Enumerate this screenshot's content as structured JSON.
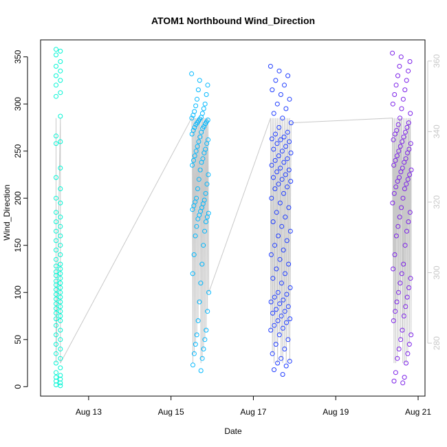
{
  "chart_data": {
    "type": "scatter",
    "title": "ATOM1 Northbound Wind_Direction",
    "xlabel": "Date",
    "ylabel": "Wind_Direction",
    "x_ticks": [
      "Aug 13",
      "Aug 15",
      "Aug 17",
      "Aug 19",
      "Aug 21"
    ],
    "y_ticks": [
      0,
      50,
      100,
      150,
      200,
      250,
      300,
      350
    ],
    "y_right_ticks": [
      280,
      300,
      320,
      340,
      360
    ],
    "xlim": [
      "2021-08-11T20:00",
      "2021-08-21T04:00"
    ],
    "ylim": [
      -10,
      368
    ],
    "y_right_lim": [
      265,
      366
    ],
    "grid": false,
    "colors": {
      "series_1": "#00f5d4",
      "series_2": "#00b8ff",
      "series_3": "#1e3cff",
      "series_4": "#7b1fe8",
      "line": "#c8c8c8"
    },
    "series": [
      {
        "x_range": [
          "2021-08-12T05:00",
          "2021-08-12T10:00"
        ],
        "values": [
          358,
          356,
          352,
          345,
          340,
          335,
          330,
          325,
          320,
          312,
          308,
          287,
          266,
          260,
          258,
          232,
          222,
          210,
          200,
          195,
          185,
          180,
          175,
          170,
          165,
          160,
          155,
          150,
          145,
          140,
          135,
          130,
          128,
          125,
          122,
          120,
          118,
          115,
          112,
          110,
          108,
          105,
          103,
          100,
          98,
          95,
          93,
          90,
          88,
          85,
          83,
          80,
          78,
          75,
          72,
          70,
          65,
          60,
          55,
          50,
          45,
          40,
          35,
          30,
          25,
          20,
          15,
          12,
          10,
          8,
          6,
          4,
          2,
          1
        ]
      },
      {
        "x_range": [
          "2021-08-15T12:00",
          "2021-08-15T22:00"
        ],
        "values": [
          332,
          325,
          320,
          315,
          310,
          305,
          300,
          298,
          295,
          292,
          290,
          288,
          286,
          285,
          284,
          283,
          282,
          281,
          280,
          279,
          278,
          276,
          275,
          274,
          272,
          270,
          268,
          265,
          262,
          260,
          258,
          255,
          252,
          250,
          248,
          245,
          242,
          240,
          238,
          235,
          230,
          225,
          220,
          215,
          210,
          205,
          200,
          198,
          196,
          194,
          192,
          190,
          188,
          186,
          184,
          182,
          180,
          178,
          175,
          170,
          165,
          160,
          150,
          140,
          130,
          120,
          110,
          100,
          90,
          80,
          70,
          60,
          55,
          50,
          45,
          40,
          35,
          30,
          23,
          17
        ]
      },
      {
        "x_range": [
          "2021-08-17T10:00",
          "2021-08-17T22:00"
        ],
        "values": [
          340,
          335,
          330,
          325,
          320,
          315,
          310,
          305,
          300,
          295,
          290,
          285,
          280,
          275,
          270,
          268,
          265,
          263,
          262,
          260,
          258,
          255,
          252,
          250,
          248,
          245,
          242,
          240,
          238,
          235,
          232,
          230,
          228,
          225,
          222,
          220,
          218,
          215,
          212,
          210,
          205,
          200,
          195,
          190,
          185,
          180,
          175,
          170,
          165,
          160,
          155,
          150,
          145,
          140,
          135,
          130,
          125,
          120,
          115,
          110,
          105,
          100,
          98,
          95,
          92,
          90,
          88,
          85,
          82,
          80,
          78,
          75,
          72,
          70,
          68,
          65,
          62,
          60,
          55,
          50,
          45,
          40,
          35,
          30,
          27,
          25,
          22,
          18,
          13
        ]
      },
      {
        "x_range": [
          "2021-08-20T09:00",
          "2021-08-20T20:00"
        ],
        "values": [
          354,
          350,
          345,
          340,
          335,
          330,
          325,
          320,
          315,
          310,
          305,
          300,
          295,
          290,
          285,
          280,
          278,
          275,
          272,
          270,
          268,
          265,
          262,
          260,
          258,
          255,
          252,
          250,
          248,
          245,
          242,
          240,
          238,
          235,
          232,
          230,
          228,
          225,
          222,
          220,
          218,
          215,
          212,
          210,
          205,
          200,
          195,
          190,
          185,
          180,
          175,
          170,
          165,
          160,
          150,
          140,
          130,
          125,
          120,
          115,
          110,
          105,
          100,
          95,
          90,
          85,
          80,
          75,
          70,
          60,
          55,
          50,
          45,
          40,
          35,
          30,
          25,
          15,
          10,
          6,
          4
        ]
      }
    ]
  }
}
